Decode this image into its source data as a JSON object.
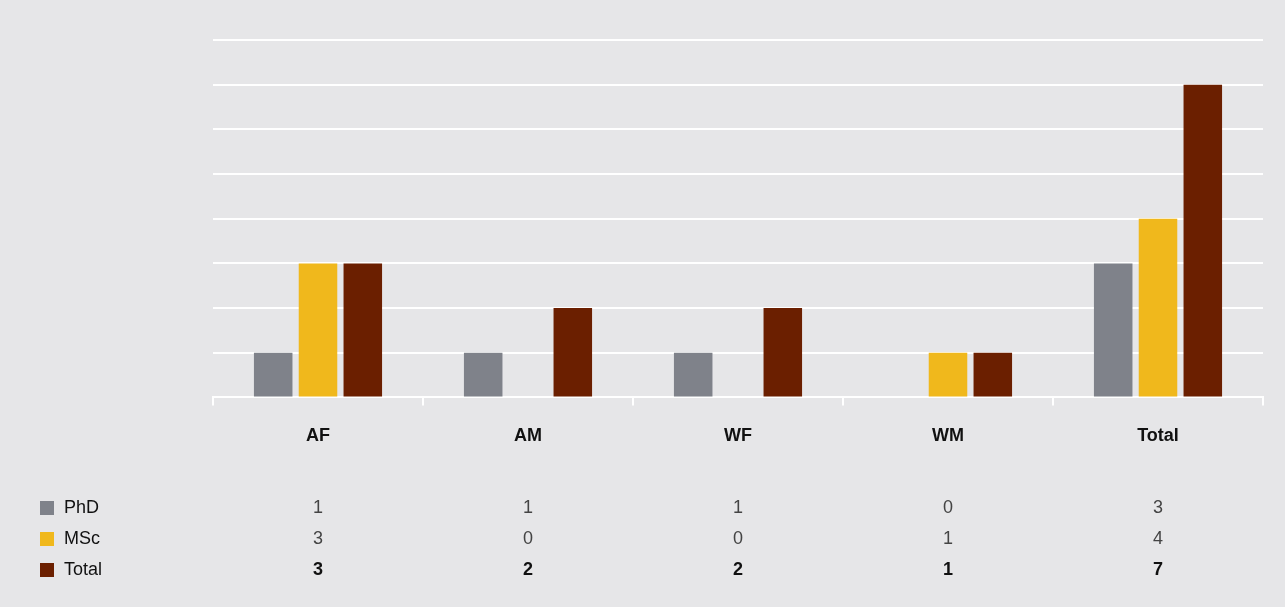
{
  "chart_data": {
    "type": "bar",
    "categories": [
      "AF",
      "AM",
      "WF",
      "WM",
      "Total"
    ],
    "series": [
      {
        "name": "PhD",
        "color": "#7f828a",
        "values": [
          1,
          1,
          1,
          0,
          3
        ]
      },
      {
        "name": "MSc",
        "color": "#f0b81c",
        "values": [
          3,
          0,
          0,
          1,
          4
        ]
      },
      {
        "name": "Total",
        "color": "#6b1f00",
        "values": [
          3,
          2,
          2,
          1,
          7
        ]
      }
    ],
    "ylim": [
      0,
      8
    ],
    "yticks": [
      {
        "value": 0,
        "label": null
      },
      {
        "value": 1,
        "label": null
      },
      {
        "value": 2,
        "label": null
      },
      {
        "value": 3,
        "label": null
      },
      {
        "value": 4,
        "label": null
      },
      {
        "value": 5,
        "label": null
      },
      {
        "value": 6,
        "label": null
      },
      {
        "value": 7,
        "label": null
      }
    ],
    "tick_labels": "x",
    "grid": "y",
    "legend": "bottom left",
    "data_labels": true
  }
}
